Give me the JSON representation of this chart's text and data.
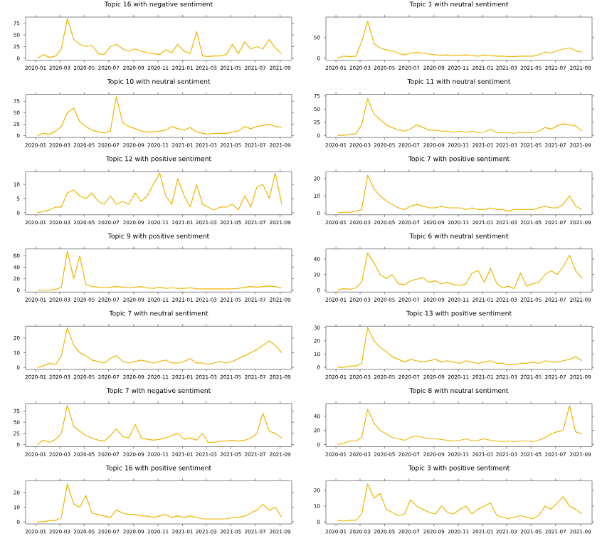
{
  "chart_data": [
    {
      "type": "line",
      "title": "Topic 16 with negative sentiment",
      "color": "#f0b400",
      "xlim": [
        "2019-12-07",
        "2021-09-30"
      ],
      "xticks": [
        "2020-01",
        "2020-03",
        "2020-05",
        "2020-07",
        "2020-09",
        "2020-11",
        "2021-01",
        "2021-03",
        "2021-05",
        "2021-07",
        "2021-09"
      ],
      "ylim": [
        -4,
        88
      ],
      "yticks": [
        0,
        25,
        50,
        75
      ],
      "x": [
        "2020-01-05",
        "2020-01-20",
        "2020-02-05",
        "2020-02-20",
        "2020-03-05",
        "2020-03-20",
        "2020-04-05",
        "2020-04-20",
        "2020-05-05",
        "2020-05-20",
        "2020-06-05",
        "2020-06-20",
        "2020-07-05",
        "2020-07-20",
        "2020-08-05",
        "2020-08-20",
        "2020-09-05",
        "2020-09-20",
        "2020-10-05",
        "2020-10-20",
        "2020-11-05",
        "2020-11-20",
        "2020-12-05",
        "2020-12-20",
        "2021-01-05",
        "2021-01-20",
        "2021-02-05",
        "2021-02-20",
        "2021-03-05",
        "2021-03-20",
        "2021-04-05",
        "2021-04-20",
        "2021-05-05",
        "2021-05-20",
        "2021-06-05",
        "2021-06-20",
        "2021-07-05",
        "2021-07-20",
        "2021-08-05",
        "2021-08-20",
        "2021-09-05"
      ],
      "values": [
        0,
        8,
        2,
        5,
        20,
        85,
        40,
        30,
        25,
        28,
        10,
        8,
        25,
        30,
        20,
        15,
        20,
        15,
        12,
        10,
        8,
        18,
        12,
        30,
        15,
        10,
        57,
        5,
        4,
        5,
        5,
        8,
        30,
        10,
        35,
        20,
        25,
        20,
        40,
        22,
        10
      ]
    },
    {
      "type": "line",
      "title": "Topic 1 with neutral sentiment",
      "color": "#f0b400",
      "xlim": [
        "2019-12-07",
        "2021-09-30"
      ],
      "xticks": [
        "2020-01",
        "2020-03",
        "2020-05",
        "2020-07",
        "2020-09",
        "2020-11",
        "2021-01",
        "2021-03",
        "2021-05",
        "2021-07",
        "2021-09"
      ],
      "ylim": [
        -5,
        100
      ],
      "yticks": [
        0,
        50
      ],
      "x": [
        "2020-01-05",
        "2020-01-20",
        "2020-02-05",
        "2020-02-20",
        "2020-03-05",
        "2020-03-20",
        "2020-04-05",
        "2020-04-20",
        "2020-05-05",
        "2020-05-20",
        "2020-06-05",
        "2020-06-20",
        "2020-07-05",
        "2020-07-20",
        "2020-08-05",
        "2020-08-20",
        "2020-09-05",
        "2020-09-20",
        "2020-10-05",
        "2020-10-20",
        "2020-11-05",
        "2020-11-20",
        "2020-12-05",
        "2020-12-20",
        "2021-01-05",
        "2021-01-20",
        "2021-02-05",
        "2021-02-20",
        "2021-03-05",
        "2021-03-20",
        "2021-04-05",
        "2021-04-20",
        "2021-05-05",
        "2021-05-20",
        "2021-06-05",
        "2021-06-20",
        "2021-07-05",
        "2021-07-20",
        "2021-08-05",
        "2021-08-20",
        "2021-09-05"
      ],
      "values": [
        0,
        5,
        4,
        5,
        40,
        90,
        35,
        25,
        20,
        18,
        12,
        8,
        12,
        14,
        12,
        10,
        8,
        7,
        8,
        6,
        7,
        8,
        6,
        5,
        8,
        6,
        5,
        5,
        4,
        4,
        5,
        5,
        5,
        8,
        15,
        12,
        18,
        22,
        25,
        18,
        15
      ]
    },
    {
      "type": "line",
      "title": "Topic 10 with neutral sentiment",
      "color": "#f0b400",
      "xlim": [
        "2019-12-07",
        "2021-09-30"
      ],
      "xticks": [
        "2020-01",
        "2020-03",
        "2020-05",
        "2020-07",
        "2020-09",
        "2020-11",
        "2021-01",
        "2021-03",
        "2021-05",
        "2021-07",
        "2021-09"
      ],
      "ylim": [
        -4,
        90
      ],
      "yticks": [
        0,
        25,
        50,
        75
      ],
      "x": [
        "2020-01-05",
        "2020-01-20",
        "2020-02-05",
        "2020-02-20",
        "2020-03-05",
        "2020-03-20",
        "2020-04-05",
        "2020-04-20",
        "2020-05-05",
        "2020-05-20",
        "2020-06-05",
        "2020-06-20",
        "2020-07-05",
        "2020-07-20",
        "2020-08-05",
        "2020-08-20",
        "2020-09-05",
        "2020-09-20",
        "2020-10-05",
        "2020-10-20",
        "2020-11-05",
        "2020-11-20",
        "2020-12-05",
        "2020-12-20",
        "2021-01-05",
        "2021-01-20",
        "2021-02-05",
        "2021-02-20",
        "2021-03-05",
        "2021-03-20",
        "2021-04-05",
        "2021-04-20",
        "2021-05-05",
        "2021-05-20",
        "2021-06-05",
        "2021-06-20",
        "2021-07-05",
        "2021-07-20",
        "2021-08-05",
        "2021-08-20",
        "2021-09-05"
      ],
      "values": [
        0,
        5,
        3,
        10,
        20,
        50,
        60,
        30,
        20,
        12,
        8,
        6,
        10,
        85,
        28,
        20,
        15,
        10,
        8,
        8,
        10,
        12,
        20,
        15,
        12,
        18,
        8,
        5,
        3,
        5,
        5,
        5,
        8,
        10,
        20,
        15,
        20,
        22,
        25,
        20,
        18
      ]
    },
    {
      "type": "line",
      "title": "Topic 11 with neutral sentiment",
      "color": "#f0b400",
      "xlim": [
        "2019-12-07",
        "2021-09-30"
      ],
      "xticks": [
        "2020-01",
        "2020-03",
        "2020-05",
        "2020-07",
        "2020-09",
        "2020-11",
        "2021-01",
        "2021-03",
        "2021-05",
        "2021-07",
        "2021-09"
      ],
      "ylim": [
        -4,
        78
      ],
      "yticks": [
        0,
        25,
        50,
        75
      ],
      "x": [
        "2020-01-05",
        "2020-01-20",
        "2020-02-05",
        "2020-02-20",
        "2020-03-05",
        "2020-03-20",
        "2020-04-05",
        "2020-04-20",
        "2020-05-05",
        "2020-05-20",
        "2020-06-05",
        "2020-06-20",
        "2020-07-05",
        "2020-07-20",
        "2020-08-05",
        "2020-08-20",
        "2020-09-05",
        "2020-09-20",
        "2020-10-05",
        "2020-10-20",
        "2020-11-05",
        "2020-11-20",
        "2020-12-05",
        "2020-12-20",
        "2021-01-05",
        "2021-01-20",
        "2021-02-05",
        "2021-02-20",
        "2021-03-05",
        "2021-03-20",
        "2021-04-05",
        "2021-04-20",
        "2021-05-05",
        "2021-05-20",
        "2021-06-05",
        "2021-06-20",
        "2021-07-05",
        "2021-07-20",
        "2021-08-05",
        "2021-08-20",
        "2021-09-05"
      ],
      "values": [
        0,
        0,
        2,
        3,
        20,
        70,
        40,
        30,
        20,
        15,
        10,
        8,
        12,
        20,
        15,
        10,
        10,
        8,
        8,
        6,
        8,
        6,
        8,
        5,
        6,
        12,
        5,
        5,
        5,
        4,
        6,
        5,
        5,
        8,
        15,
        12,
        18,
        22,
        20,
        18,
        8
      ]
    },
    {
      "type": "line",
      "title": "Topic 12 with positive sentiment",
      "color": "#f0b400",
      "xlim": [
        "2019-12-07",
        "2021-09-30"
      ],
      "xticks": [
        "2020-01",
        "2020-03",
        "2020-05",
        "2020-07",
        "2020-09",
        "2020-11",
        "2021-01",
        "2021-03",
        "2021-05",
        "2021-07",
        "2021-09"
      ],
      "ylim": [
        -0.7,
        14.5
      ],
      "yticks": [
        0,
        5,
        10
      ],
      "x": [
        "2020-01-05",
        "2020-01-20",
        "2020-02-05",
        "2020-02-20",
        "2020-03-05",
        "2020-03-20",
        "2020-04-05",
        "2020-04-20",
        "2020-05-05",
        "2020-05-20",
        "2020-06-05",
        "2020-06-20",
        "2020-07-05",
        "2020-07-20",
        "2020-08-05",
        "2020-08-20",
        "2020-09-05",
        "2020-09-20",
        "2020-10-05",
        "2020-10-20",
        "2020-11-05",
        "2020-11-20",
        "2020-12-05",
        "2020-12-20",
        "2021-01-05",
        "2021-01-20",
        "2021-02-05",
        "2021-02-20",
        "2021-03-05",
        "2021-03-20",
        "2021-04-05",
        "2021-04-20",
        "2021-05-05",
        "2021-05-20",
        "2021-06-05",
        "2021-06-20",
        "2021-07-05",
        "2021-07-20",
        "2021-08-05",
        "2021-08-20",
        "2021-09-05"
      ],
      "values": [
        0,
        0.5,
        1,
        2,
        2,
        7,
        8,
        6,
        5,
        7,
        4,
        3,
        6,
        3,
        4,
        3,
        7,
        4,
        6,
        10,
        14,
        6,
        3,
        12,
        6,
        2,
        10,
        3,
        2,
        1,
        2,
        2,
        3,
        1,
        6,
        2,
        9,
        10,
        5,
        14,
        3
      ]
    },
    {
      "type": "line",
      "title": "Topic 7 with positive sentiment",
      "color": "#f0b400",
      "xlim": [
        "2019-12-07",
        "2021-09-30"
      ],
      "xticks": [
        "2020-01",
        "2020-03",
        "2020-05",
        "2020-07",
        "2020-09",
        "2020-11",
        "2021-01",
        "2021-03",
        "2021-05",
        "2021-07",
        "2021-09"
      ],
      "ylim": [
        -1,
        24
      ],
      "yticks": [
        0,
        10,
        20
      ],
      "x": [
        "2020-01-05",
        "2020-01-20",
        "2020-02-05",
        "2020-02-20",
        "2020-03-05",
        "2020-03-20",
        "2020-04-05",
        "2020-04-20",
        "2020-05-05",
        "2020-05-20",
        "2020-06-05",
        "2020-06-20",
        "2020-07-05",
        "2020-07-20",
        "2020-08-05",
        "2020-08-20",
        "2020-09-05",
        "2020-09-20",
        "2020-10-05",
        "2020-10-20",
        "2020-11-05",
        "2020-11-20",
        "2020-12-05",
        "2020-12-20",
        "2021-01-05",
        "2021-01-20",
        "2021-02-05",
        "2021-02-20",
        "2021-03-05",
        "2021-03-20",
        "2021-04-05",
        "2021-04-20",
        "2021-05-05",
        "2021-05-20",
        "2021-06-05",
        "2021-06-20",
        "2021-07-05",
        "2021-07-20",
        "2021-08-05",
        "2021-08-20",
        "2021-09-05"
      ],
      "values": [
        0,
        0.5,
        0.5,
        1,
        2,
        22,
        14,
        10,
        7,
        5,
        3,
        2,
        4,
        5,
        4,
        3,
        3,
        4,
        3,
        3,
        3,
        2,
        3,
        2,
        2,
        3,
        2,
        2,
        1,
        2,
        2,
        2,
        2,
        3,
        4,
        3,
        3,
        5,
        10,
        4,
        2
      ]
    },
    {
      "type": "line",
      "title": "Topic 9 with positive sentiment",
      "color": "#f0b400",
      "xlim": [
        "2019-12-07",
        "2021-09-30"
      ],
      "xticks": [
        "2020-01",
        "2020-03",
        "2020-05",
        "2020-07",
        "2020-09",
        "2020-11",
        "2021-01",
        "2021-03",
        "2021-05",
        "2021-07",
        "2021-09"
      ],
      "ylim": [
        -3.5,
        72
      ],
      "yticks": [
        0,
        20,
        40,
        60
      ],
      "x": [
        "2020-01-05",
        "2020-01-20",
        "2020-02-05",
        "2020-02-20",
        "2020-03-05",
        "2020-03-20",
        "2020-04-05",
        "2020-04-20",
        "2020-05-05",
        "2020-05-20",
        "2020-06-05",
        "2020-06-20",
        "2020-07-05",
        "2020-07-20",
        "2020-08-05",
        "2020-08-20",
        "2020-09-05",
        "2020-09-20",
        "2020-10-05",
        "2020-10-20",
        "2020-11-05",
        "2020-11-20",
        "2020-12-05",
        "2020-12-20",
        "2021-01-05",
        "2021-01-20",
        "2021-02-05",
        "2021-02-20",
        "2021-03-05",
        "2021-03-20",
        "2021-04-05",
        "2021-04-20",
        "2021-05-05",
        "2021-05-20",
        "2021-06-05",
        "2021-06-20",
        "2021-07-05",
        "2021-07-20",
        "2021-08-05",
        "2021-08-20",
        "2021-09-05"
      ],
      "values": [
        0,
        0,
        0,
        1,
        5,
        68,
        20,
        60,
        10,
        6,
        5,
        4,
        5,
        6,
        5,
        4,
        5,
        6,
        4,
        3,
        5,
        3,
        4,
        3,
        3,
        4,
        2,
        2,
        2,
        2,
        2,
        2,
        2,
        3,
        5,
        6,
        5,
        6,
        7,
        6,
        4
      ]
    },
    {
      "type": "line",
      "title": "Topic 6 with neutral sentiment",
      "color": "#f0b400",
      "xlim": [
        "2019-12-07",
        "2021-09-30"
      ],
      "xticks": [
        "2020-01",
        "2020-03",
        "2020-05",
        "2020-07",
        "2020-09",
        "2020-11",
        "2021-01",
        "2021-03",
        "2021-05",
        "2021-07",
        "2021-09"
      ],
      "ylim": [
        -2.5,
        53
      ],
      "yticks": [
        0,
        20,
        40
      ],
      "x": [
        "2020-01-05",
        "2020-01-20",
        "2020-02-05",
        "2020-02-20",
        "2020-03-05",
        "2020-03-20",
        "2020-04-05",
        "2020-04-20",
        "2020-05-05",
        "2020-05-20",
        "2020-06-05",
        "2020-06-20",
        "2020-07-05",
        "2020-07-20",
        "2020-08-05",
        "2020-08-20",
        "2020-09-05",
        "2020-09-20",
        "2020-10-05",
        "2020-10-20",
        "2020-11-05",
        "2020-11-20",
        "2020-12-05",
        "2020-12-20",
        "2021-01-05",
        "2021-01-20",
        "2021-02-05",
        "2021-02-20",
        "2021-03-05",
        "2021-03-20",
        "2021-04-05",
        "2021-04-20",
        "2021-05-05",
        "2021-05-20",
        "2021-06-05",
        "2021-06-20",
        "2021-07-05",
        "2021-07-20",
        "2021-08-05",
        "2021-08-20",
        "2021-09-05"
      ],
      "values": [
        0,
        2,
        1,
        3,
        10,
        48,
        35,
        20,
        15,
        20,
        8,
        7,
        12,
        14,
        16,
        10,
        12,
        8,
        10,
        7,
        6,
        8,
        22,
        25,
        10,
        28,
        8,
        3,
        5,
        2,
        22,
        5,
        8,
        10,
        20,
        25,
        20,
        30,
        45,
        25,
        15
      ]
    },
    {
      "type": "line",
      "title": "Topic 7 with neutral sentiment",
      "color": "#f0b400",
      "xlim": [
        "2019-12-07",
        "2021-09-30"
      ],
      "xticks": [
        "2020-01",
        "2020-03",
        "2020-05",
        "2020-07",
        "2020-09",
        "2020-11",
        "2021-01",
        "2021-03",
        "2021-05",
        "2021-07",
        "2021-09"
      ],
      "ylim": [
        -1.3,
        28
      ],
      "yticks": [
        0,
        10,
        20
      ],
      "x": [
        "2020-01-05",
        "2020-01-20",
        "2020-02-05",
        "2020-02-20",
        "2020-03-05",
        "2020-03-20",
        "2020-04-05",
        "2020-04-20",
        "2020-05-05",
        "2020-05-20",
        "2020-06-05",
        "2020-06-20",
        "2020-07-05",
        "2020-07-20",
        "2020-08-05",
        "2020-08-20",
        "2020-09-05",
        "2020-09-20",
        "2020-10-05",
        "2020-10-20",
        "2020-11-05",
        "2020-11-20",
        "2020-12-05",
        "2020-12-20",
        "2021-01-05",
        "2021-01-20",
        "2021-02-05",
        "2021-02-20",
        "2021-03-05",
        "2021-03-20",
        "2021-04-05",
        "2021-04-20",
        "2021-05-05",
        "2021-05-20",
        "2021-06-05",
        "2021-06-20",
        "2021-07-05",
        "2021-07-20",
        "2021-08-05",
        "2021-08-20",
        "2021-09-05"
      ],
      "values": [
        0,
        1,
        3,
        2,
        8,
        27,
        15,
        10,
        8,
        5,
        4,
        3,
        6,
        8,
        4,
        3,
        4,
        5,
        4,
        3,
        4,
        5,
        3,
        3,
        4,
        6,
        3,
        3,
        2,
        3,
        4,
        3,
        4,
        6,
        8,
        10,
        12,
        15,
        18,
        15,
        10
      ]
    },
    {
      "type": "line",
      "title": "Topic 13 with positive sentiment",
      "color": "#f0b400",
      "xlim": [
        "2019-12-07",
        "2021-09-30"
      ],
      "xticks": [
        "2020-01",
        "2020-03",
        "2020-05",
        "2020-07",
        "2020-09",
        "2020-11",
        "2021-01",
        "2021-03",
        "2021-05",
        "2021-07",
        "2021-09"
      ],
      "ylim": [
        -1.5,
        31
      ],
      "yticks": [
        0,
        10,
        20,
        30
      ],
      "x": [
        "2020-01-05",
        "2020-01-20",
        "2020-02-05",
        "2020-02-20",
        "2020-03-05",
        "2020-03-20",
        "2020-04-05",
        "2020-04-20",
        "2020-05-05",
        "2020-05-20",
        "2020-06-05",
        "2020-06-20",
        "2020-07-05",
        "2020-07-20",
        "2020-08-05",
        "2020-08-20",
        "2020-09-05",
        "2020-09-20",
        "2020-10-05",
        "2020-10-20",
        "2020-11-05",
        "2020-11-20",
        "2020-12-05",
        "2020-12-20",
        "2021-01-05",
        "2021-01-20",
        "2021-02-05",
        "2021-02-20",
        "2021-03-05",
        "2021-03-20",
        "2021-04-05",
        "2021-04-20",
        "2021-05-05",
        "2021-05-20",
        "2021-06-05",
        "2021-06-20",
        "2021-07-05",
        "2021-07-20",
        "2021-08-05",
        "2021-08-20",
        "2021-09-05"
      ],
      "values": [
        0,
        0,
        1,
        1,
        3,
        30,
        20,
        15,
        12,
        8,
        6,
        4,
        6,
        5,
        4,
        5,
        6,
        4,
        5,
        4,
        3,
        5,
        4,
        3,
        4,
        5,
        3,
        3,
        2,
        2,
        3,
        3,
        4,
        3,
        5,
        4,
        4,
        5,
        6,
        8,
        5
      ]
    },
    {
      "type": "line",
      "title": "Topic 7 with negative sentiment",
      "color": "#f0b400",
      "xlim": [
        "2019-12-07",
        "2021-09-30"
      ],
      "xticks": [
        "2020-01",
        "2020-03",
        "2020-05",
        "2020-07",
        "2020-09",
        "2020-11",
        "2021-01",
        "2021-03",
        "2021-05",
        "2021-07",
        "2021-09"
      ],
      "ylim": [
        -4.5,
        92
      ],
      "yticks": [
        0,
        25,
        50,
        75
      ],
      "x": [
        "2020-01-05",
        "2020-01-20",
        "2020-02-05",
        "2020-02-20",
        "2020-03-05",
        "2020-03-20",
        "2020-04-05",
        "2020-04-20",
        "2020-05-05",
        "2020-05-20",
        "2020-06-05",
        "2020-06-20",
        "2020-07-05",
        "2020-07-20",
        "2020-08-05",
        "2020-08-20",
        "2020-09-05",
        "2020-09-20",
        "2020-10-05",
        "2020-10-20",
        "2020-11-05",
        "2020-11-20",
        "2020-12-05",
        "2020-12-20",
        "2021-01-05",
        "2021-01-20",
        "2021-02-05",
        "2021-02-20",
        "2021-03-05",
        "2021-03-20",
        "2021-04-05",
        "2021-04-20",
        "2021-05-05",
        "2021-05-20",
        "2021-06-05",
        "2021-06-20",
        "2021-07-05",
        "2021-07-20",
        "2021-08-05",
        "2021-08-20",
        "2021-09-05"
      ],
      "values": [
        0,
        10,
        5,
        12,
        25,
        88,
        40,
        30,
        20,
        15,
        10,
        8,
        20,
        35,
        18,
        15,
        45,
        15,
        12,
        10,
        12,
        15,
        20,
        25,
        12,
        15,
        10,
        25,
        5,
        5,
        8,
        8,
        10,
        8,
        10,
        15,
        25,
        70,
        30,
        25,
        15
      ]
    },
    {
      "type": "line",
      "title": "Topic 8 with neutral sentiment",
      "color": "#f0b400",
      "xlim": [
        "2019-12-07",
        "2021-09-30"
      ],
      "xticks": [
        "2020-01",
        "2020-03",
        "2020-05",
        "2020-07",
        "2020-09",
        "2020-11",
        "2021-01",
        "2021-03",
        "2021-05",
        "2021-07",
        "2021-09"
      ],
      "ylim": [
        -3,
        58
      ],
      "yticks": [
        0,
        20,
        40
      ],
      "x": [
        "2020-01-05",
        "2020-01-20",
        "2020-02-05",
        "2020-02-20",
        "2020-03-05",
        "2020-03-20",
        "2020-04-05",
        "2020-04-20",
        "2020-05-05",
        "2020-05-20",
        "2020-06-05",
        "2020-06-20",
        "2020-07-05",
        "2020-07-20",
        "2020-08-05",
        "2020-08-20",
        "2020-09-05",
        "2020-09-20",
        "2020-10-05",
        "2020-10-20",
        "2020-11-05",
        "2020-11-20",
        "2020-12-05",
        "2020-12-20",
        "2021-01-05",
        "2021-01-20",
        "2021-02-05",
        "2021-02-20",
        "2021-03-05",
        "2021-03-20",
        "2021-04-05",
        "2021-04-20",
        "2021-05-05",
        "2021-05-20",
        "2021-06-05",
        "2021-06-20",
        "2021-07-05",
        "2021-07-20",
        "2021-08-05",
        "2021-08-20",
        "2021-09-05"
      ],
      "values": [
        0,
        2,
        5,
        5,
        10,
        50,
        30,
        20,
        15,
        10,
        8,
        6,
        10,
        12,
        10,
        8,
        8,
        7,
        6,
        5,
        6,
        8,
        5,
        6,
        8,
        6,
        5,
        4,
        5,
        4,
        5,
        5,
        4,
        6,
        10,
        15,
        18,
        20,
        55,
        18,
        15
      ]
    },
    {
      "type": "line",
      "title": "Topic 16 with positive sentiment",
      "color": "#f0b400",
      "xlim": [
        "2019-12-07",
        "2021-09-30"
      ],
      "xticks": [
        "2020-01",
        "2020-03",
        "2020-05",
        "2020-07",
        "2020-09",
        "2020-11",
        "2021-01",
        "2021-03",
        "2021-05",
        "2021-07",
        "2021-09"
      ],
      "ylim": [
        -1.4,
        28
      ],
      "yticks": [
        0,
        10,
        20
      ],
      "x": [
        "2020-01-05",
        "2020-01-20",
        "2020-02-05",
        "2020-02-20",
        "2020-03-05",
        "2020-03-20",
        "2020-04-05",
        "2020-04-20",
        "2020-05-05",
        "2020-05-20",
        "2020-06-05",
        "2020-06-20",
        "2020-07-05",
        "2020-07-20",
        "2020-08-05",
        "2020-08-20",
        "2020-09-05",
        "2020-09-20",
        "2020-10-05",
        "2020-10-20",
        "2020-11-05",
        "2020-11-20",
        "2020-12-05",
        "2020-12-20",
        "2021-01-05",
        "2021-01-20",
        "2021-02-05",
        "2021-02-20",
        "2021-03-05",
        "2021-03-20",
        "2021-04-05",
        "2021-04-20",
        "2021-05-05",
        "2021-05-20",
        "2021-06-05",
        "2021-06-20",
        "2021-07-05",
        "2021-07-20",
        "2021-08-05",
        "2021-08-20",
        "2021-09-05"
      ],
      "values": [
        0,
        0,
        1,
        1,
        3,
        26,
        12,
        10,
        18,
        6,
        5,
        4,
        3,
        8,
        6,
        5,
        5,
        4,
        4,
        3,
        4,
        5,
        3,
        4,
        3,
        4,
        3,
        2,
        2,
        2,
        2,
        2,
        3,
        3,
        4,
        6,
        8,
        12,
        8,
        10,
        3
      ]
    },
    {
      "type": "line",
      "title": "Topic 3 with positive sentiment",
      "color": "#f0b400",
      "xlim": [
        "2019-12-07",
        "2021-09-30"
      ],
      "xticks": [
        "2020-01",
        "2020-03",
        "2020-05",
        "2020-07",
        "2020-09",
        "2020-11",
        "2021-01",
        "2021-03",
        "2021-05",
        "2021-07",
        "2021-09"
      ],
      "ylim": [
        -1.3,
        26
      ],
      "yticks": [
        0,
        10,
        20
      ],
      "x": [
        "2020-01-05",
        "2020-01-20",
        "2020-02-05",
        "2020-02-20",
        "2020-03-05",
        "2020-03-20",
        "2020-04-05",
        "2020-04-20",
        "2020-05-05",
        "2020-05-20",
        "2020-06-05",
        "2020-06-20",
        "2020-07-05",
        "2020-07-20",
        "2020-08-05",
        "2020-08-20",
        "2020-09-05",
        "2020-09-20",
        "2020-10-05",
        "2020-10-20",
        "2020-11-05",
        "2020-11-20",
        "2020-12-05",
        "2020-12-20",
        "2021-01-05",
        "2021-01-20",
        "2021-02-05",
        "2021-02-20",
        "2021-03-05",
        "2021-03-20",
        "2021-04-05",
        "2021-04-20",
        "2021-05-05",
        "2021-05-20",
        "2021-06-05",
        "2021-06-20",
        "2021-07-05",
        "2021-07-20",
        "2021-08-05",
        "2021-08-20",
        "2021-09-05"
      ],
      "values": [
        1,
        0.5,
        1,
        1,
        5,
        24,
        15,
        18,
        8,
        6,
        4,
        5,
        14,
        10,
        8,
        6,
        5,
        10,
        6,
        5,
        8,
        10,
        5,
        8,
        10,
        12,
        4,
        3,
        2,
        3,
        4,
        3,
        2,
        4,
        10,
        8,
        12,
        16,
        10,
        8,
        5
      ]
    }
  ]
}
